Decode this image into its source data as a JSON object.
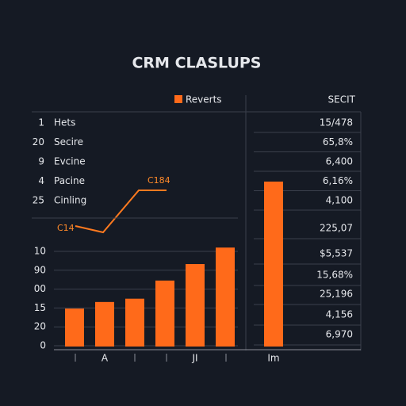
{
  "header": {
    "title": "CRM CLASLUPS",
    "legend": "Reverts",
    "right_heading": "SECIT"
  },
  "rows": [
    {
      "index": "1",
      "label": "Hets",
      "value": "15/478"
    },
    {
      "index": "20",
      "label": "Secire",
      "value": "65,8%"
    },
    {
      "index": "9",
      "label": "Evcine",
      "value": "6,400"
    },
    {
      "index": "4",
      "label": "Pacine",
      "value": "6,16%"
    },
    {
      "index": "25",
      "label": "Cinling",
      "value": "4,100"
    }
  ],
  "annotations": [
    "C14",
    "C184"
  ],
  "right_values": [
    "225,07",
    "$5,537",
    "15,68%",
    "25,196",
    "4,156",
    "6,970"
  ],
  "chart_data": {
    "type": "bar",
    "categories": [
      null,
      "A",
      null,
      null,
      "JI",
      null,
      "Im"
    ],
    "values": [
      23,
      27,
      29,
      40,
      50,
      60,
      100
    ],
    "color": "#ff6a1a",
    "ylim": [
      0,
      100
    ],
    "y_axis_labels": [
      "10",
      "90",
      "00",
      "15",
      "20",
      "0"
    ]
  }
}
